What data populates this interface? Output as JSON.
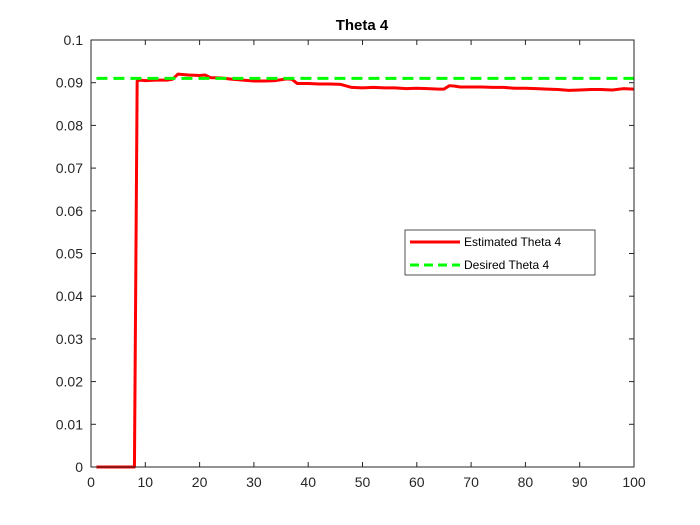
{
  "chart_data": {
    "type": "line",
    "title": "Theta 4",
    "xlabel": "",
    "ylabel": "",
    "xlim": [
      0,
      100
    ],
    "ylim": [
      0,
      0.1
    ],
    "xticks": [
      0,
      10,
      20,
      30,
      40,
      50,
      60,
      70,
      80,
      90,
      100
    ],
    "yticks": [
      0,
      0.01,
      0.02,
      0.03,
      0.04,
      0.05,
      0.06,
      0.07,
      0.08,
      0.09,
      0.1
    ],
    "xtick_labels": [
      "0",
      "10",
      "20",
      "30",
      "40",
      "50",
      "60",
      "70",
      "80",
      "90",
      "100"
    ],
    "ytick_labels": [
      "0",
      "0.01",
      "0.02",
      "0.03",
      "0.04",
      "0.05",
      "0.06",
      "0.07",
      "0.08",
      "0.09",
      "0.1"
    ],
    "grid": false,
    "legend_position": "center-right",
    "series": [
      {
        "name": "Estimated Theta 4",
        "color": "#ff0000",
        "style": "solid",
        "x": [
          1,
          8,
          8.5,
          9,
          10,
          12,
          14,
          15,
          16,
          18,
          20,
          21,
          22,
          24,
          26,
          28,
          30,
          32,
          34,
          36,
          37,
          38,
          40,
          42,
          44,
          46,
          48,
          50,
          52,
          54,
          56,
          58,
          60,
          62,
          64,
          65,
          66,
          67,
          68,
          70,
          72,
          74,
          76,
          78,
          80,
          82,
          84,
          86,
          88,
          90,
          92,
          94,
          96,
          98,
          100
        ],
        "y": [
          0,
          0,
          0.0904,
          0.0906,
          0.0905,
          0.0906,
          0.0906,
          0.0908,
          0.092,
          0.0918,
          0.0917,
          0.0918,
          0.0912,
          0.0911,
          0.0908,
          0.0906,
          0.0904,
          0.0904,
          0.0905,
          0.0909,
          0.0908,
          0.0898,
          0.0898,
          0.0897,
          0.0897,
          0.0896,
          0.0889,
          0.0888,
          0.0889,
          0.0888,
          0.0888,
          0.0886,
          0.0887,
          0.0886,
          0.0885,
          0.0885,
          0.0893,
          0.0892,
          0.089,
          0.089,
          0.089,
          0.0889,
          0.0889,
          0.0887,
          0.0887,
          0.0886,
          0.0885,
          0.0884,
          0.0882,
          0.0883,
          0.0884,
          0.0884,
          0.0883,
          0.0886,
          0.0885
        ]
      },
      {
        "name": "Desired Theta 4",
        "color": "#00ff00",
        "style": "dashed",
        "x": [
          1,
          100
        ],
        "y": [
          0.091,
          0.091
        ]
      }
    ]
  }
}
